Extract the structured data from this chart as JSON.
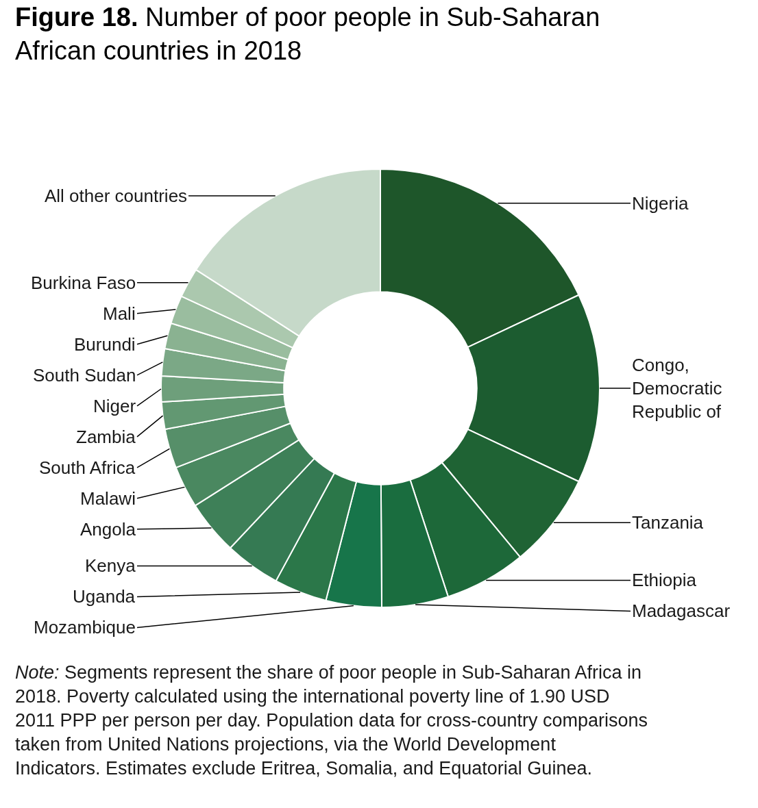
{
  "chart_data": {
    "type": "donut",
    "title": "Figure 18. Number of poor people in Sub-Saharan African countries in 2018",
    "categories": [
      "Nigeria",
      "Congo, Democratic Republic of",
      "Tanzania",
      "Ethiopia",
      "Madagascar",
      "Mozambique",
      "Uganda",
      "Kenya",
      "Angola",
      "Malawi",
      "South Africa",
      "Zambia",
      "Niger",
      "South Sudan",
      "Burundi",
      "Mali",
      "Burkina Faso",
      "All other countries"
    ],
    "values": [
      18.0,
      14.0,
      7.0,
      6.0,
      4.9,
      4.1,
      3.9,
      4.1,
      4.0,
      3.1,
      2.9,
      2.0,
      1.9,
      2.0,
      1.9,
      2.1,
      2.2,
      15.9
    ],
    "colors": [
      "#1e562a",
      "#1c5c30",
      "#1f6334",
      "#1d6839",
      "#1a6d3f",
      "#17754a",
      "#2b7749",
      "#357a53",
      "#3e8058",
      "#4a8860",
      "#568f69",
      "#629872",
      "#6e9f7b",
      "#7ba886",
      "#8ab291",
      "#9abd9f",
      "#abc8ae",
      "#c6d9c9"
    ],
    "annotations": [
      "Note: Segments represent the share of poor people in Sub-Saharan Africa in 2018. Poverty calculated using the international poverty line of 1.90 USD 2011 PPP per person per day. Population data for cross-country comparisons taken from United Nations projections, via the World Development Indicators. Estimates exclude Eritrea, Somalia, and Equatorial Guinea."
    ]
  }
}
